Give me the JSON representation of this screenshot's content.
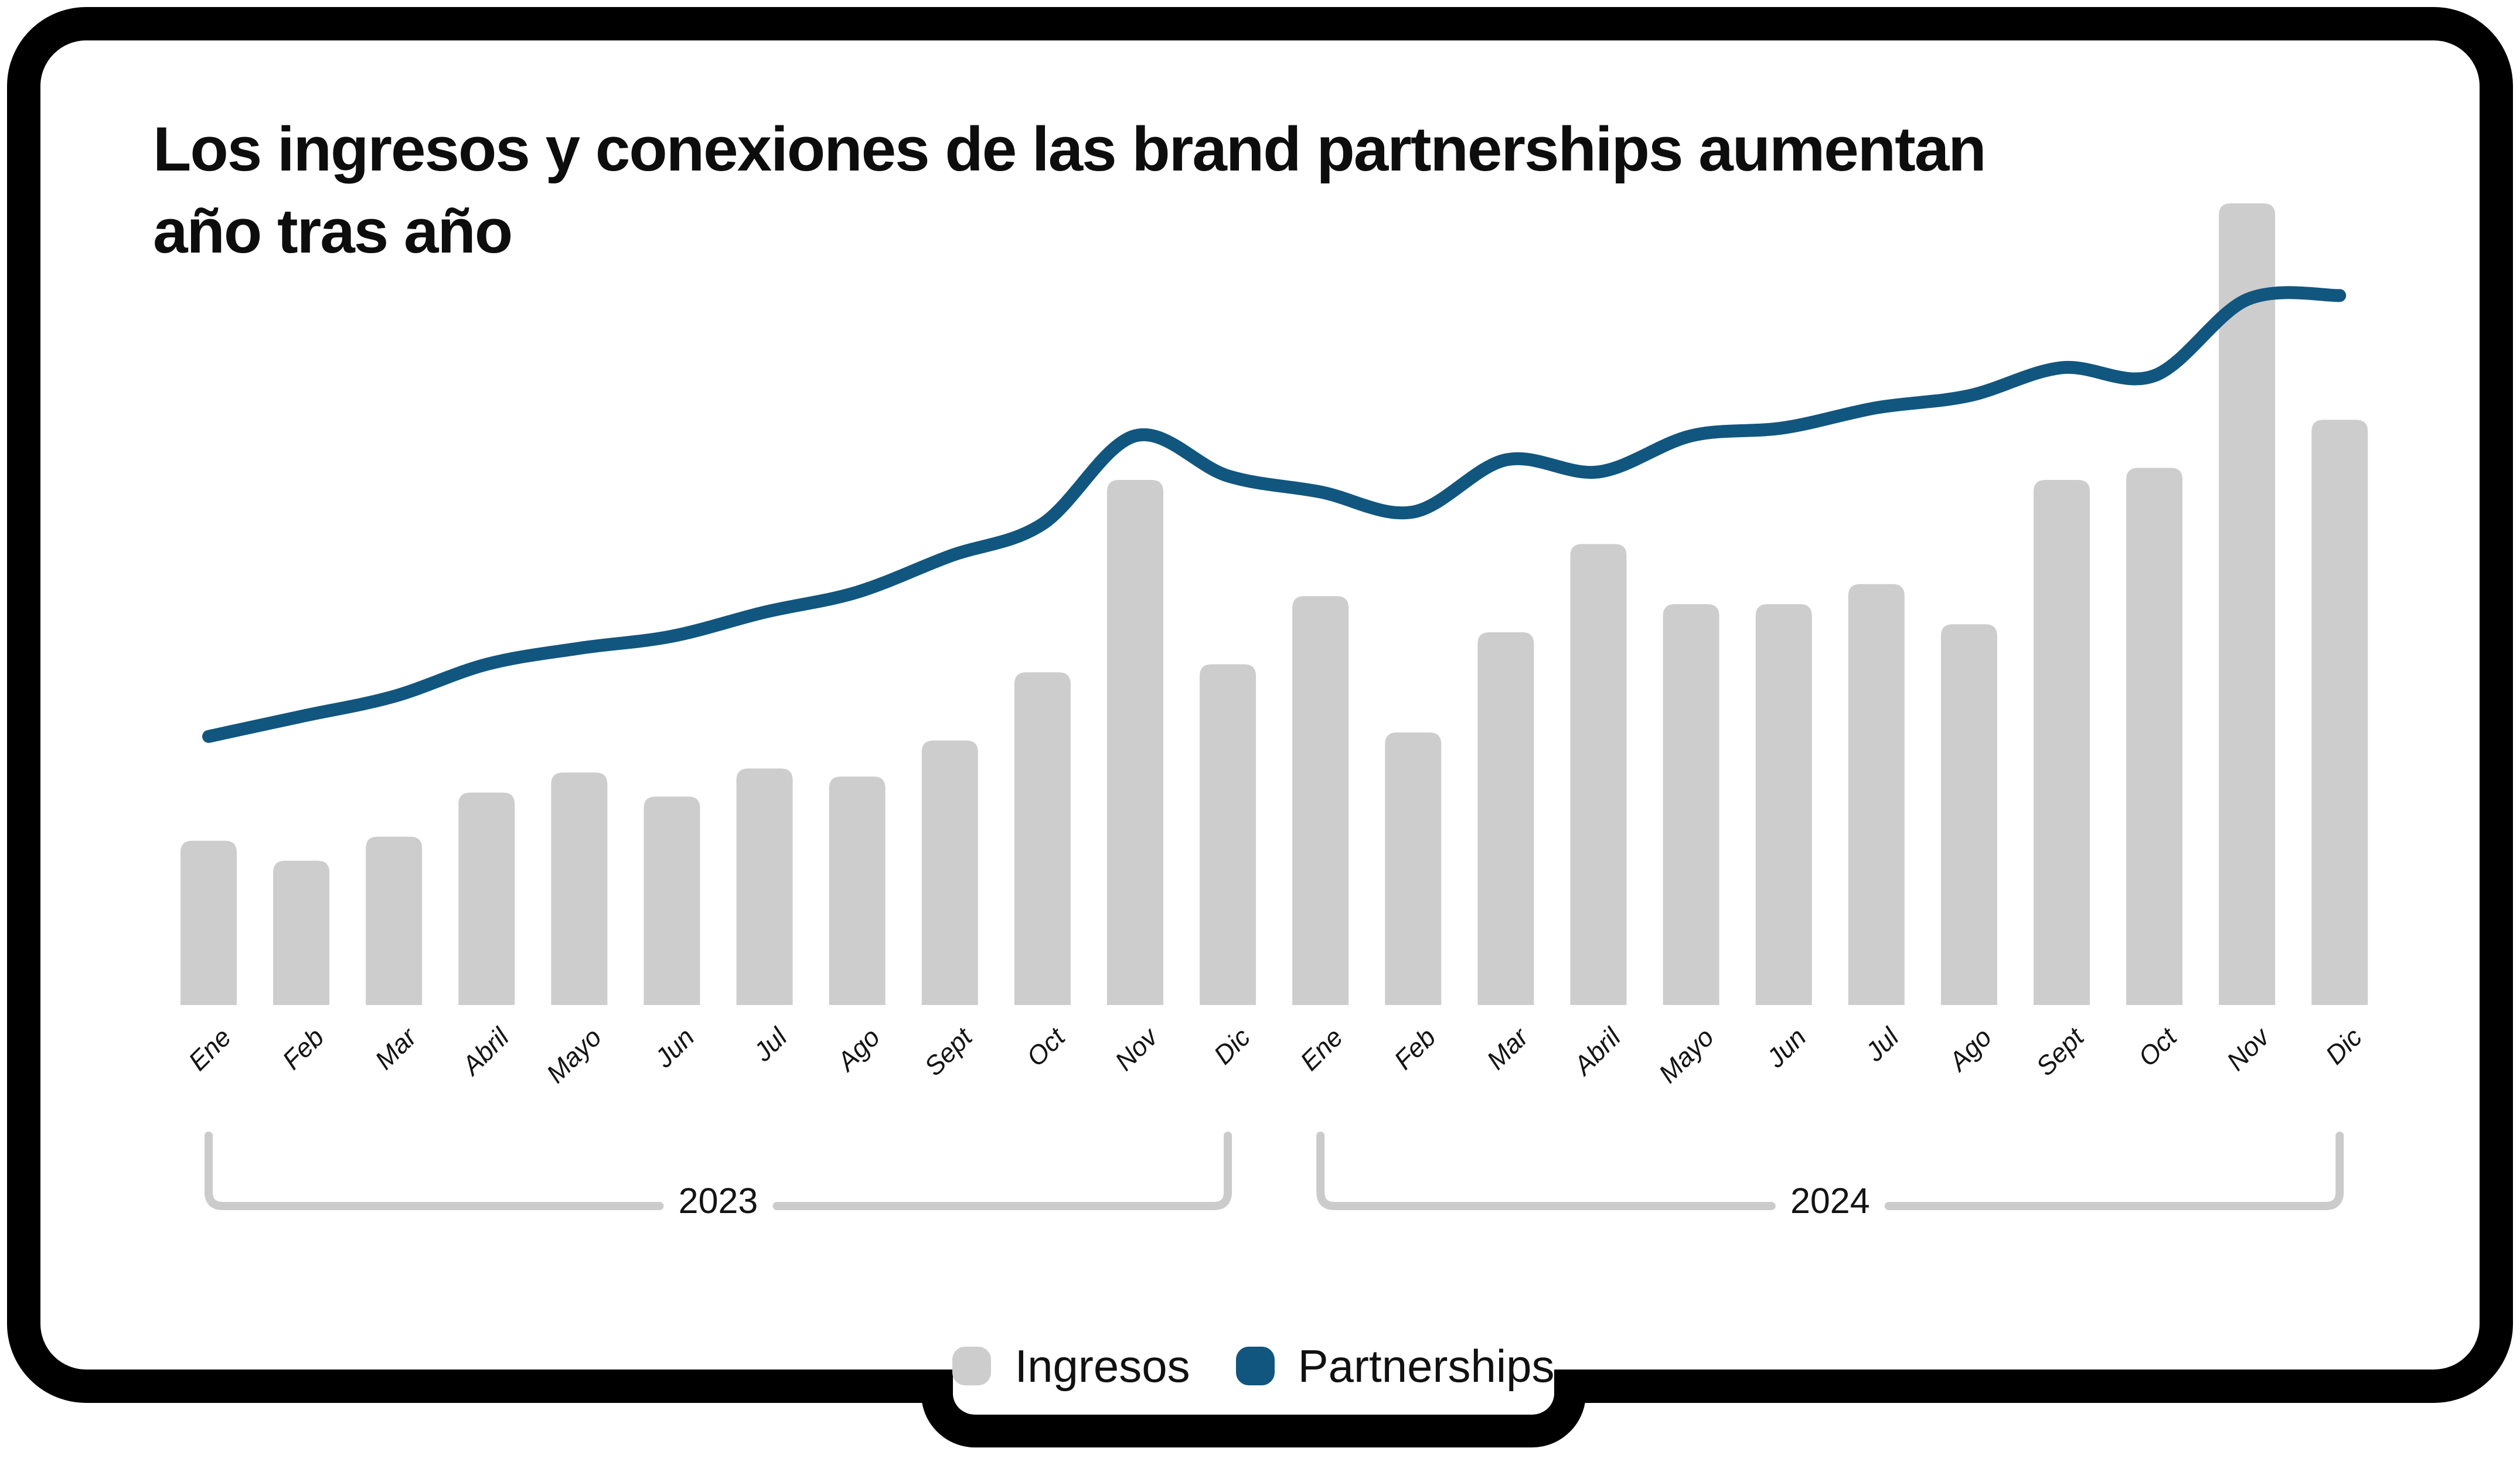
{
  "title": {
    "line1": "Los ingresos y conexiones de las brand partnerships aumentan",
    "line2": "año tras año"
  },
  "legend": {
    "items": [
      {
        "label": "Ingresos",
        "color": "#cdcdcd"
      },
      {
        "label": "Partnerships",
        "color": "#11567F"
      }
    ]
  },
  "colors": {
    "frame": "#000000",
    "background": "#ffffff",
    "bars": "#cdcdcd",
    "line": "#11567F",
    "bracket": "#cbcbcb",
    "text": "#0d0d0d"
  },
  "chart_data": {
    "type": "bar+line",
    "title": "Los ingresos y conexiones de las brand partnerships aumentan año tras año",
    "categories": [
      "Ene",
      "Feb",
      "Mar",
      "Abril",
      "Mayo",
      "Jun",
      "Jul",
      "Ago",
      "Sept",
      "Oct",
      "Nov",
      "Dic",
      "Ene",
      "Feb",
      "Mar",
      "Abril",
      "Mayo",
      "Jun",
      "Jul",
      "Ago",
      "Sept",
      "Oct",
      "Nov",
      "Dic"
    ],
    "year_groups": [
      {
        "label": "2023",
        "start": 0,
        "end": 11
      },
      {
        "label": "2024",
        "start": 12,
        "end": 23
      }
    ],
    "series": [
      {
        "name": "Ingresos",
        "type": "bar",
        "color": "#cdcdcd",
        "values": [
          20.5,
          18,
          21,
          26.5,
          29,
          26,
          29.5,
          28.5,
          33,
          41.5,
          65.5,
          42.5,
          51,
          34,
          46.5,
          57.5,
          50,
          50,
          52.5,
          47.5,
          65.5,
          67,
          100,
          73
        ]
      },
      {
        "name": "Partnerships",
        "type": "line",
        "color": "#11567F",
        "values": [
          33.5,
          36,
          38.5,
          42.5,
          44.5,
          46,
          49,
          51.5,
          56,
          60,
          71,
          66,
          64,
          61.5,
          68,
          66.5,
          71,
          72,
          74.5,
          76,
          79.5,
          78.5,
          88,
          88.5
        ]
      }
    ],
    "xlabel": "",
    "ylabel": "",
    "ylim": [
      0,
      110
    ],
    "grid": false,
    "y_axis_shown": false,
    "legend_position": "bottom"
  }
}
